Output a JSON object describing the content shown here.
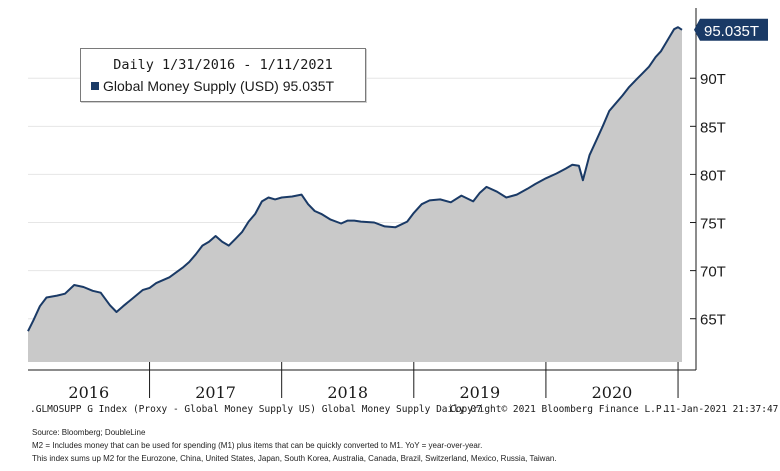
{
  "chart_data": {
    "type": "area",
    "title": "Daily 1/31/2016 - 1/11/2021",
    "series": [
      {
        "name": "Global Money Supply (USD)",
        "last_value_label": "95.035T",
        "points": [
          [
            2016.08,
            63.7
          ],
          [
            2016.12,
            64.8
          ],
          [
            2016.17,
            66.3
          ],
          [
            2016.22,
            67.2
          ],
          [
            2016.3,
            67.4
          ],
          [
            2016.36,
            67.6
          ],
          [
            2016.43,
            68.5
          ],
          [
            2016.5,
            68.3
          ],
          [
            2016.57,
            67.9
          ],
          [
            2016.63,
            67.7
          ],
          [
            2016.7,
            66.4
          ],
          [
            2016.75,
            65.7
          ],
          [
            2016.8,
            66.3
          ],
          [
            2016.88,
            67.2
          ],
          [
            2016.95,
            68.0
          ],
          [
            2017.0,
            68.2
          ],
          [
            2017.05,
            68.7
          ],
          [
            2017.1,
            69.0
          ],
          [
            2017.15,
            69.3
          ],
          [
            2017.25,
            70.3
          ],
          [
            2017.3,
            70.9
          ],
          [
            2017.35,
            71.7
          ],
          [
            2017.4,
            72.6
          ],
          [
            2017.45,
            73.0
          ],
          [
            2017.5,
            73.6
          ],
          [
            2017.55,
            73.0
          ],
          [
            2017.6,
            72.6
          ],
          [
            2017.65,
            73.3
          ],
          [
            2017.7,
            74.0
          ],
          [
            2017.75,
            75.1
          ],
          [
            2017.8,
            75.9
          ],
          [
            2017.85,
            77.2
          ],
          [
            2017.9,
            77.6
          ],
          [
            2017.95,
            77.4
          ],
          [
            2018.0,
            77.6
          ],
          [
            2018.08,
            77.7
          ],
          [
            2018.15,
            77.9
          ],
          [
            2018.2,
            76.9
          ],
          [
            2018.25,
            76.2
          ],
          [
            2018.3,
            75.9
          ],
          [
            2018.37,
            75.3
          ],
          [
            2018.45,
            74.9
          ],
          [
            2018.5,
            75.2
          ],
          [
            2018.55,
            75.2
          ],
          [
            2018.6,
            75.1
          ],
          [
            2018.7,
            75.0
          ],
          [
            2018.78,
            74.6
          ],
          [
            2018.86,
            74.5
          ],
          [
            2018.95,
            75.1
          ],
          [
            2019.0,
            76.0
          ],
          [
            2019.06,
            76.9
          ],
          [
            2019.12,
            77.3
          ],
          [
            2019.2,
            77.4
          ],
          [
            2019.28,
            77.1
          ],
          [
            2019.36,
            77.8
          ],
          [
            2019.45,
            77.2
          ],
          [
            2019.5,
            78.1
          ],
          [
            2019.55,
            78.7
          ],
          [
            2019.63,
            78.2
          ],
          [
            2019.7,
            77.6
          ],
          [
            2019.78,
            77.9
          ],
          [
            2019.86,
            78.5
          ],
          [
            2019.92,
            79.0
          ],
          [
            2020.0,
            79.6
          ],
          [
            2020.08,
            80.1
          ],
          [
            2020.15,
            80.6
          ],
          [
            2020.2,
            81.0
          ],
          [
            2020.25,
            80.9
          ],
          [
            2020.28,
            79.4
          ],
          [
            2020.33,
            82.0
          ],
          [
            2020.38,
            83.5
          ],
          [
            2020.43,
            85.0
          ],
          [
            2020.48,
            86.6
          ],
          [
            2020.53,
            87.4
          ],
          [
            2020.58,
            88.2
          ],
          [
            2020.63,
            89.1
          ],
          [
            2020.68,
            89.8
          ],
          [
            2020.73,
            90.5
          ],
          [
            2020.78,
            91.2
          ],
          [
            2020.83,
            92.2
          ],
          [
            2020.87,
            92.8
          ],
          [
            2020.91,
            93.7
          ],
          [
            2020.94,
            94.4
          ],
          [
            2020.97,
            95.1
          ],
          [
            2021.0,
            95.3
          ],
          [
            2021.03,
            95.035
          ]
        ]
      }
    ],
    "x_ticks": [
      "2016",
      "2017",
      "2018",
      "2019",
      "2020"
    ],
    "y_ticks": [
      {
        "value": 65,
        "label": "65T"
      },
      {
        "value": 70,
        "label": "70T"
      },
      {
        "value": 75,
        "label": "75T"
      },
      {
        "value": 80,
        "label": "80T"
      },
      {
        "value": 85,
        "label": "85T"
      },
      {
        "value": 90,
        "label": "90T"
      }
    ],
    "xlim": [
      2016.08,
      2021.03
    ],
    "ylim": [
      60.5,
      97.3
    ],
    "series_color": "#1a3a66",
    "fill_color": "#c9c9c9",
    "highlight_label_color": "#1a3a66"
  },
  "legend": {
    "title": "Daily 1/31/2016 - 1/11/2021",
    "entry": "Global Money Supply (USD) 95.035T"
  },
  "footer": {
    "index": ".GLMOSUPP G Index (Proxy - Global Money Supply US) Global Money Supply  Daily 07",
    "copyright": "Copyright© 2021 Bloomberg Finance L.P.",
    "timestamp": "11-Jan-2021 21:37:47"
  },
  "notes": {
    "source": "Source: Bloomberg; DoubleLine",
    "m2": "M2 = Includes money that can be used for spending (M1) plus items that can be quickly converted to M1. YoY = year-over-year.",
    "index_desc": "This index sums up M2 for the Eurozone, China, United States, Japan, South Korea, Australia, Canada, Brazil, Switzerland, Mexico, Russia, Taiwan."
  }
}
